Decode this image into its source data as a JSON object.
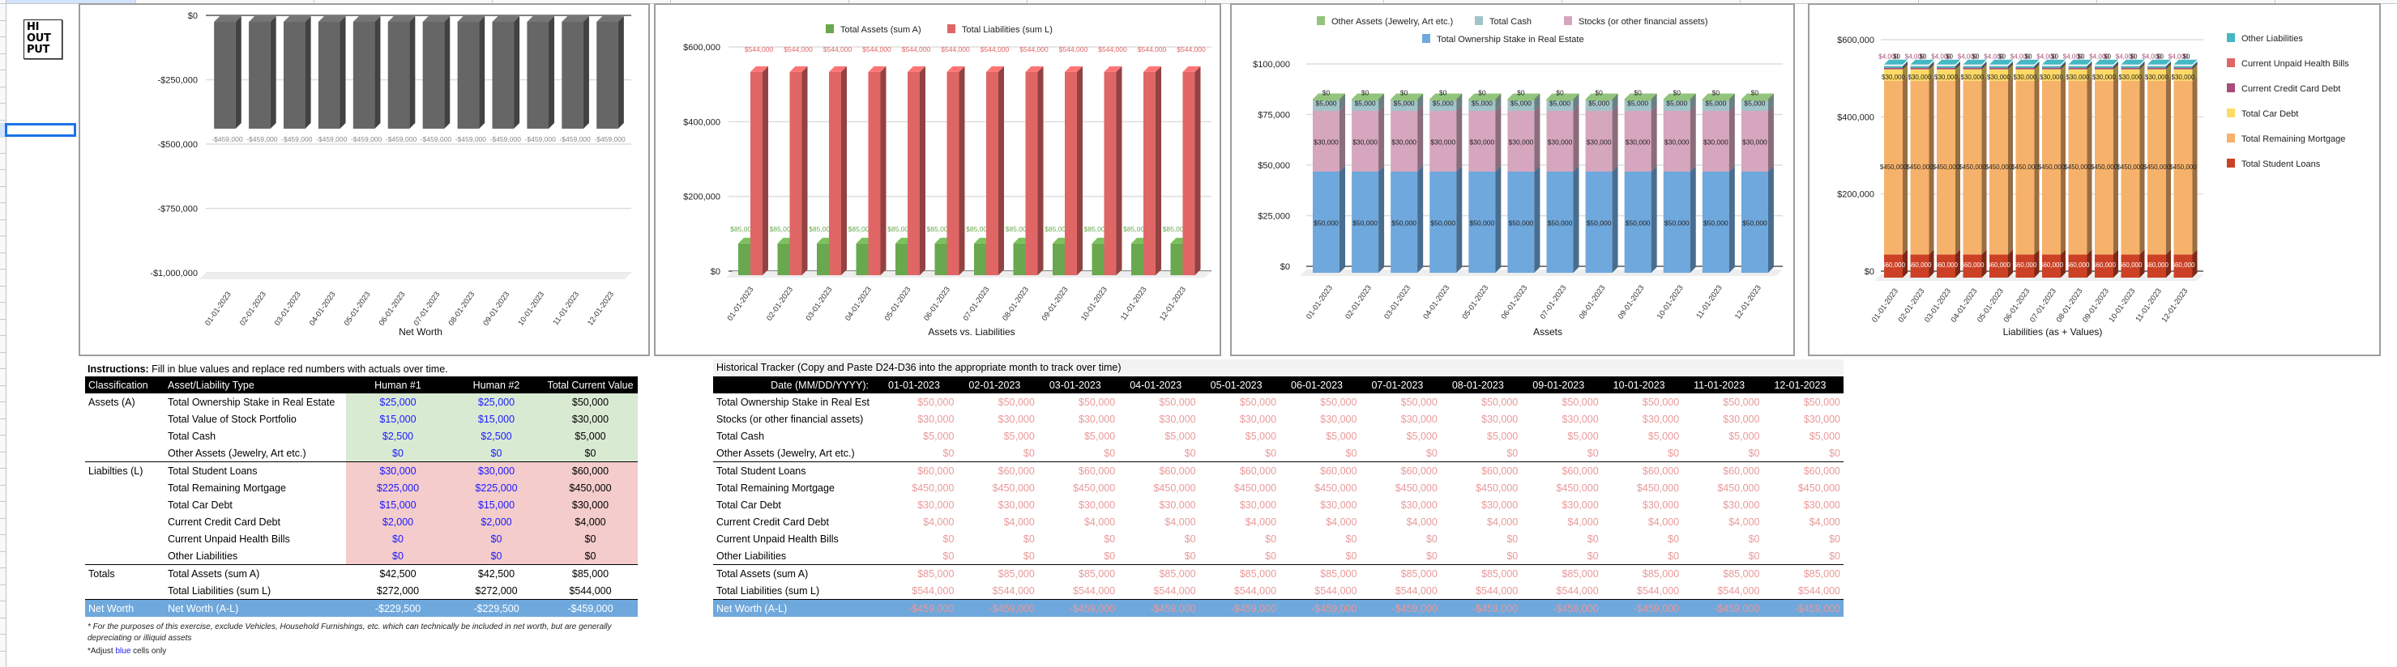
{
  "logo": {
    "lines": [
      "HI",
      "OUT",
      "PUT"
    ]
  },
  "summary": {
    "instructions_bold": "Instructions:",
    "instructions_text": " Fill in blue values and replace red numbers with actuals over time.",
    "headers": [
      "Classification",
      "Asset/Liability Type",
      "Human #1",
      "Human #2",
      "Total Current Value"
    ],
    "rows": [
      {
        "group": "Assets (A)",
        "type": "Total Ownership Stake in Real Estate",
        "h1": "$25,000",
        "h2": "$25,000",
        "total": "$50,000",
        "kind": "asset"
      },
      {
        "group": "",
        "type": "Total Value of Stock Portfolio",
        "h1": "$15,000",
        "h2": "$15,000",
        "total": "$30,000",
        "kind": "asset"
      },
      {
        "group": "",
        "type": "Total Cash",
        "h1": "$2,500",
        "h2": "$2,500",
        "total": "$5,000",
        "kind": "asset"
      },
      {
        "group": "",
        "type": "Other Assets (Jewelry, Art etc.)",
        "h1": "$0",
        "h2": "$0",
        "total": "$0",
        "kind": "asset"
      },
      {
        "group": "Liabilties (L)",
        "type": "Total Student Loans",
        "h1": "$30,000",
        "h2": "$30,000",
        "total": "$60,000",
        "kind": "liability"
      },
      {
        "group": "",
        "type": "Total Remaining Mortgage",
        "h1": "$225,000",
        "h2": "$225,000",
        "total": "$450,000",
        "kind": "liability"
      },
      {
        "group": "",
        "type": "Total Car Debt",
        "h1": "$15,000",
        "h2": "$15,000",
        "total": "$30,000",
        "kind": "liability"
      },
      {
        "group": "",
        "type": "Current Credit Card Debt",
        "h1": "$2,000",
        "h2": "$2,000",
        "total": "$4,000",
        "kind": "liability"
      },
      {
        "group": "",
        "type": "Current Unpaid Health Bills",
        "h1": "$0",
        "h2": "$0",
        "total": "$0",
        "kind": "liability"
      },
      {
        "group": "",
        "type": "Other Liabilities",
        "h1": "$0",
        "h2": "$0",
        "total": "$0",
        "kind": "liability"
      },
      {
        "group": "Totals",
        "type": "Total Assets (sum A)",
        "h1": "$42,500",
        "h2": "$42,500",
        "total": "$85,000",
        "kind": "total"
      },
      {
        "group": "",
        "type": "Total Liabilities (sum L)",
        "h1": "$272,000",
        "h2": "$272,000",
        "total": "$544,000",
        "kind": "total"
      },
      {
        "group": "Net Worth",
        "type": "Net Worth (A-L)",
        "h1": "-$229,500",
        "h2": "-$229,500",
        "total": "-$459,000",
        "kind": "networth"
      }
    ],
    "footnote": "* For the purposes of this exercise, exclude Vehicles, Household Furnishings, etc. which can technically be included in net worth, but are generally depreciating or illiquid assets",
    "adjust_note": {
      "prefix": "*Adjust ",
      "highlight": "blue",
      "suffix": " cells only"
    }
  },
  "tracker": {
    "title": "Historical Tracker (Copy and Paste D24-D36 into the appropriate month to track over time)",
    "date_label": "Date (MM/DD/YYYY):",
    "dates": [
      "01-01-2023",
      "02-01-2023",
      "03-01-2023",
      "04-01-2023",
      "05-01-2023",
      "06-01-2023",
      "07-01-2023",
      "08-01-2023",
      "09-01-2023",
      "10-01-2023",
      "11-01-2023",
      "12-01-2023"
    ],
    "rows": [
      {
        "label": "Total Ownership Stake in Real Est",
        "value": "$50,000",
        "kind": "asset"
      },
      {
        "label": "Stocks (or other financial assets)",
        "value": "$30,000",
        "kind": "asset"
      },
      {
        "label": "Total Cash",
        "value": "$5,000",
        "kind": "asset"
      },
      {
        "label": "Other Assets (Jewelry, Art etc.)",
        "value": "$0",
        "kind": "asset"
      },
      {
        "label": "Total Student Loans",
        "value": "$60,000",
        "kind": "liability"
      },
      {
        "label": "Total Remaining Mortgage",
        "value": "$450,000",
        "kind": "liability"
      },
      {
        "label": "Total Car Debt",
        "value": "$30,000",
        "kind": "liability"
      },
      {
        "label": "Current Credit Card Debt",
        "value": "$4,000",
        "kind": "liability"
      },
      {
        "label": "Current Unpaid Health Bills",
        "value": "$0",
        "kind": "liability"
      },
      {
        "label": "Other Liabilities",
        "value": "$0",
        "kind": "liability"
      },
      {
        "label": "Total Assets (sum A)",
        "value": "$85,000",
        "kind": "total"
      },
      {
        "label": "Total Liabilities (sum L)",
        "value": "$544,000",
        "kind": "total"
      },
      {
        "label": "Net Worth (A-L)",
        "value": "-$459,000",
        "kind": "networth"
      }
    ]
  },
  "colors": {
    "green_fill": "#d9ead3",
    "pink_fill": "#f4cccc",
    "networth_fill": "#6fa8dc",
    "input_blue": "#1a1aff",
    "tracker_red": "#ea9999",
    "selection_blue": "#1a73e8"
  },
  "chart_data": [
    {
      "type": "bar",
      "title": "",
      "xlabel": "Net Worth",
      "ylabel": "",
      "categories": [
        "01-01-2023",
        "02-01-2023",
        "03-01-2023",
        "04-01-2023",
        "05-01-2023",
        "06-01-2023",
        "07-01-2023",
        "08-01-2023",
        "09-01-2023",
        "10-01-2023",
        "11-01-2023",
        "12-01-2023"
      ],
      "values": [
        -459000,
        -459000,
        -459000,
        -459000,
        -459000,
        -459000,
        -459000,
        -459000,
        -459000,
        -459000,
        -459000,
        -459000
      ],
      "data_labels": [
        "-$459,000",
        "-$459,000",
        "-$459,000",
        "-$459,000",
        "-$459,000",
        "-$459,000",
        "-$459,000",
        "-$459,000",
        "-$459,000",
        "-$459,000",
        "-$459,000",
        "-$459,000"
      ],
      "ylim": [
        -1000000,
        0
      ],
      "yticks": [
        0,
        -250000,
        -500000,
        -750000,
        -1000000
      ],
      "ytick_labels": [
        "$0",
        "-$250,000",
        "-$500,000",
        "-$750,000",
        "-$1,000,000"
      ],
      "grid": true,
      "legend": "none",
      "style": "3d",
      "color": "#666666"
    },
    {
      "type": "bar",
      "title": "",
      "xlabel": "Assets vs. Liabilities",
      "categories": [
        "01-01-2023",
        "02-01-2023",
        "03-01-2023",
        "04-01-2023",
        "05-01-2023",
        "06-01-2023",
        "07-01-2023",
        "08-01-2023",
        "09-01-2023",
        "10-01-2023",
        "11-01-2023",
        "12-01-2023"
      ],
      "series": [
        {
          "name": "Total Assets (sum A)",
          "color": "#6aa84f",
          "values": [
            85000,
            85000,
            85000,
            85000,
            85000,
            85000,
            85000,
            85000,
            85000,
            85000,
            85000,
            85000
          ],
          "label": "$85,000"
        },
        {
          "name": "Total Liabilities (sum L)",
          "color": "#e06666",
          "values": [
            544000,
            544000,
            544000,
            544000,
            544000,
            544000,
            544000,
            544000,
            544000,
            544000,
            544000,
            544000
          ],
          "label": "$544,000"
        }
      ],
      "ylim": [
        0,
        600000
      ],
      "yticks": [
        0,
        200000,
        400000,
        600000
      ],
      "ytick_labels": [
        "$0",
        "$200,000",
        "$400,000",
        "$600,000"
      ],
      "grid": true,
      "legend": "top",
      "style": "3d"
    },
    {
      "type": "bar",
      "stacked": true,
      "title": "",
      "xlabel": "Assets",
      "categories": [
        "01-01-2023",
        "02-01-2023",
        "03-01-2023",
        "04-01-2023",
        "05-01-2023",
        "06-01-2023",
        "07-01-2023",
        "08-01-2023",
        "09-01-2023",
        "10-01-2023",
        "11-01-2023",
        "12-01-2023"
      ],
      "series": [
        {
          "name": "Total Ownership Stake in Real Estate",
          "color": "#6fa8dc",
          "values": [
            50000,
            50000,
            50000,
            50000,
            50000,
            50000,
            50000,
            50000,
            50000,
            50000,
            50000,
            50000
          ],
          "label": "$50,000"
        },
        {
          "name": "Stocks (or other financial assets)",
          "color": "#d5a6bd",
          "values": [
            30000,
            30000,
            30000,
            30000,
            30000,
            30000,
            30000,
            30000,
            30000,
            30000,
            30000,
            30000
          ],
          "label": "$30,000"
        },
        {
          "name": "Total Cash",
          "color": "#a2c4c9",
          "values": [
            5000,
            5000,
            5000,
            5000,
            5000,
            5000,
            5000,
            5000,
            5000,
            5000,
            5000,
            5000
          ],
          "label": "$5,000"
        },
        {
          "name": "Other Assets (Jewelry, Art etc.)",
          "color": "#93c47d",
          "values": [
            0,
            0,
            0,
            0,
            0,
            0,
            0,
            0,
            0,
            0,
            0,
            0
          ],
          "label": "$0"
        }
      ],
      "legend_order": [
        "Other Assets (Jewelry, Art etc.)",
        "Total Cash",
        "Stocks (or other financial assets)",
        "Total Ownership Stake in Real Estate"
      ],
      "ylim": [
        0,
        100000
      ],
      "yticks": [
        0,
        25000,
        50000,
        75000,
        100000
      ],
      "ytick_labels": [
        "$0",
        "$25,000",
        "$50,000",
        "$75,000",
        "$100,000"
      ],
      "grid": true,
      "legend": "top",
      "style": "3d"
    },
    {
      "type": "bar",
      "stacked": true,
      "title": "",
      "xlabel": "Liabilities (as + Values)",
      "categories": [
        "01-01-2023",
        "02-01-2023",
        "03-01-2023",
        "04-01-2023",
        "05-01-2023",
        "06-01-2023",
        "07-01-2023",
        "08-01-2023",
        "09-01-2023",
        "10-01-2023",
        "11-01-2023",
        "12-01-2023"
      ],
      "series": [
        {
          "name": "Total Student Loans",
          "color": "#cc4125",
          "values": [
            60000,
            60000,
            60000,
            60000,
            60000,
            60000,
            60000,
            60000,
            60000,
            60000,
            60000,
            60000
          ],
          "label": "$60,000"
        },
        {
          "name": "Total Remaining Mortgage",
          "color": "#f6b26b",
          "values": [
            450000,
            450000,
            450000,
            450000,
            450000,
            450000,
            450000,
            450000,
            450000,
            450000,
            450000,
            450000
          ],
          "label": "$450,000"
        },
        {
          "name": "Total Car Debt",
          "color": "#ffd966",
          "values": [
            30000,
            30000,
            30000,
            30000,
            30000,
            30000,
            30000,
            30000,
            30000,
            30000,
            30000,
            30000
          ],
          "label": "$30,000"
        },
        {
          "name": "Current Credit Card Debt",
          "color": "#a64d79",
          "values": [
            4000,
            4000,
            4000,
            4000,
            4000,
            4000,
            4000,
            4000,
            4000,
            4000,
            4000,
            4000
          ],
          "label": "$4,000"
        },
        {
          "name": "Current Unpaid Health Bills",
          "color": "#e06666",
          "values": [
            0,
            0,
            0,
            0,
            0,
            0,
            0,
            0,
            0,
            0,
            0,
            0
          ],
          "label": "$0"
        },
        {
          "name": "Other Liabilities",
          "color": "#45b8c4",
          "values": [
            0,
            0,
            0,
            0,
            0,
            0,
            0,
            0,
            0,
            0,
            0,
            0
          ],
          "label": "$0"
        }
      ],
      "legend_order": [
        "Other Liabilities",
        "Current Unpaid Health Bills",
        "Current Credit Card Debt",
        "Total Car Debt",
        "Total Remaining Mortgage",
        "Total Student Loans"
      ],
      "ylim": [
        0,
        600000
      ],
      "yticks": [
        0,
        200000,
        400000,
        600000
      ],
      "ytick_labels": [
        "$0",
        "$200,000",
        "$400,000",
        "$600,000"
      ],
      "grid": true,
      "legend": "right",
      "style": "3d"
    }
  ]
}
